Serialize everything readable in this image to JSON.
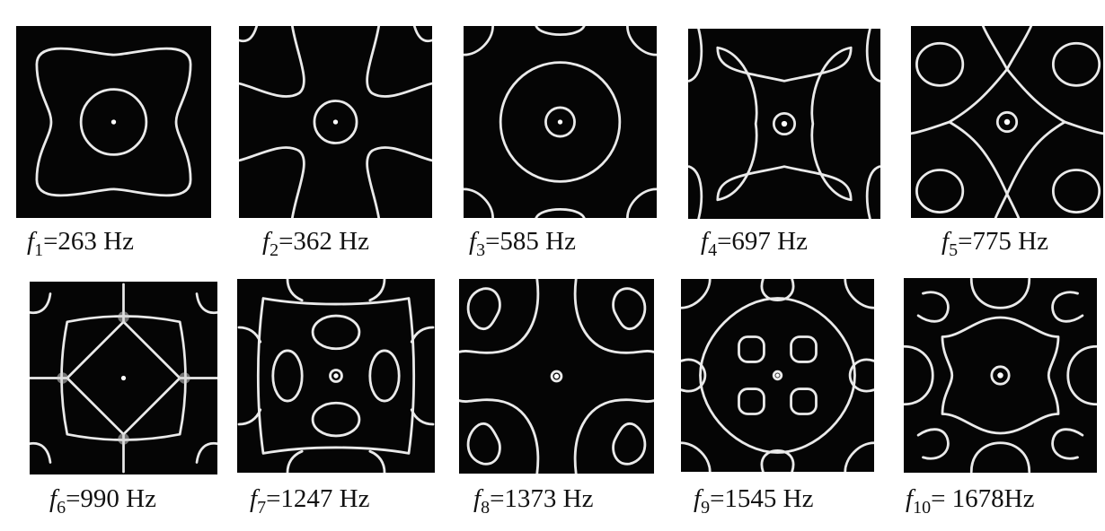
{
  "figure": {
    "panels": [
      {
        "symbol": "f",
        "sub": "1",
        "text": "=263 Hz"
      },
      {
        "symbol": "f",
        "sub": "2",
        "text": "=362 Hz"
      },
      {
        "symbol": "f",
        "sub": "3",
        "text": "=585 Hz"
      },
      {
        "symbol": "f",
        "sub": "4",
        "text": "=697 Hz"
      },
      {
        "symbol": "f",
        "sub": "5",
        "text": "=775 Hz"
      },
      {
        "symbol": "f",
        "sub": "6",
        "text": "=990 Hz"
      },
      {
        "symbol": "f",
        "sub": "7",
        "text": "=1247 Hz"
      },
      {
        "symbol": "f",
        "sub": "8",
        "text": "=1373 Hz"
      },
      {
        "symbol": "f",
        "sub": "9",
        "text": "=1545 Hz"
      },
      {
        "symbol": "f",
        "sub": "10",
        "text": "= 1678Hz"
      }
    ]
  },
  "colors": {
    "plate": "#050505",
    "pattern": "#eaeaea",
    "background": "#ffffff"
  }
}
